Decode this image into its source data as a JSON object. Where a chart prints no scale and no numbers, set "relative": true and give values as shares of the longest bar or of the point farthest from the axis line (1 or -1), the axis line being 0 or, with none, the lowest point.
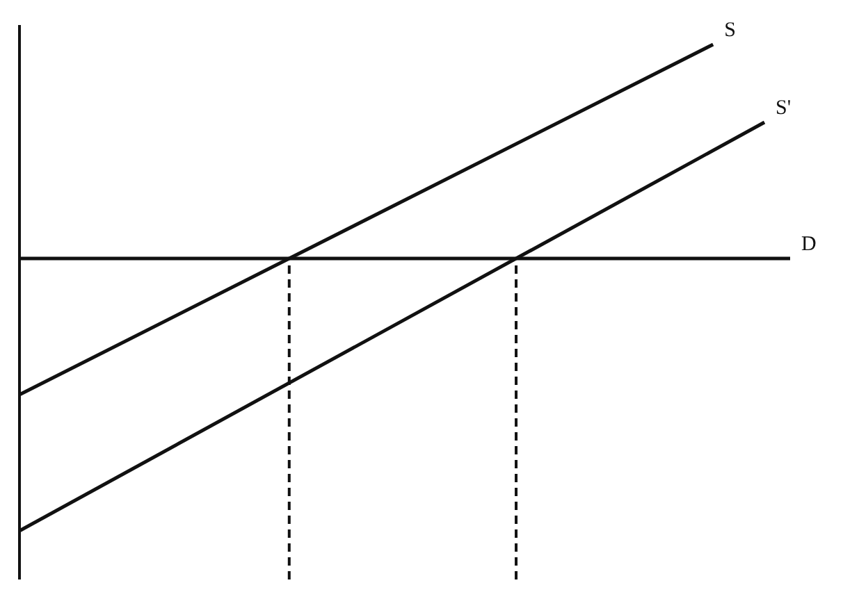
{
  "chart_data": {
    "type": "line",
    "relative": true,
    "tick_labels": false,
    "grid": false,
    "legend": false,
    "marker": "none",
    "line_style": "solid",
    "categories": [
      null,
      null,
      null,
      null,
      null,
      null,
      null,
      null,
      null,
      null,
      null,
      null,
      null,
      null,
      null,
      null,
      null,
      null,
      null,
      null,
      null,
      null,
      null,
      null,
      null,
      null,
      null,
      null,
      null,
      null,
      null
    ],
    "series": [
      {
        "name": "S",
        "color": "#111111",
        "values": [
          0.28,
          null,
          null,
          null,
          null,
          null,
          null,
          null,
          null,
          null,
          null,
          null,
          null,
          null,
          null,
          null,
          null,
          null,
          null,
          null,
          null,
          null,
          null,
          null,
          null,
          null,
          null,
          1,
          null,
          null,
          null
        ]
      },
      {
        "name": "S'",
        "color": "#111111",
        "values": [
          0,
          null,
          null,
          null,
          null,
          null,
          null,
          null,
          null,
          null,
          null,
          null,
          null,
          null,
          null,
          null,
          null,
          null,
          null,
          null,
          null,
          null,
          null,
          null,
          null,
          null,
          null,
          null,
          null,
          0.84,
          null
        ]
      },
      {
        "name": "D",
        "color": "#111111",
        "values": [
          0.56,
          null,
          null,
          null,
          null,
          null,
          null,
          null,
          null,
          null,
          null,
          null,
          null,
          null,
          null,
          null,
          null,
          null,
          null,
          null,
          null,
          null,
          null,
          null,
          null,
          null,
          null,
          null,
          null,
          null,
          0.56
        ]
      }
    ]
  }
}
